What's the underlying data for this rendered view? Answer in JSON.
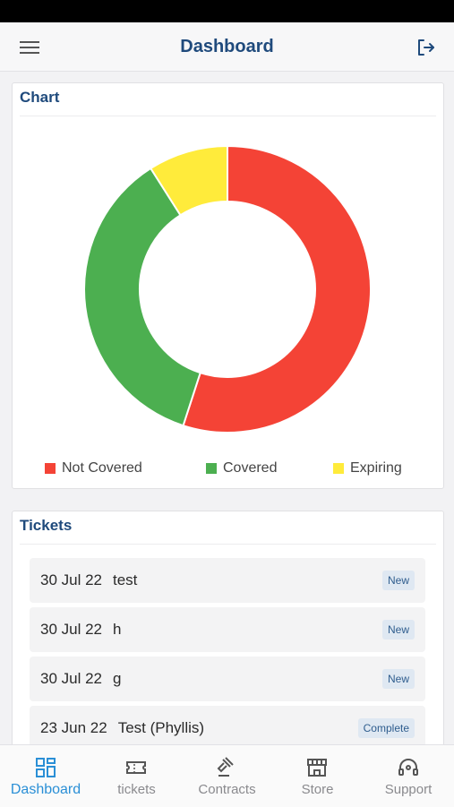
{
  "header": {
    "title": "Dashboard"
  },
  "chart_card": {
    "title": "Chart"
  },
  "chart_data": {
    "type": "pie",
    "donut": true,
    "categories": [
      "Not Covered",
      "Covered",
      "Expiring"
    ],
    "values": [
      55,
      36,
      9
    ],
    "colors": [
      "#f44336",
      "#4caf50",
      "#ffeb3b"
    ],
    "title": "Chart",
    "legend_position": "bottom"
  },
  "tickets_card": {
    "title": "Tickets"
  },
  "tickets": [
    {
      "date": "30 Jul 22",
      "subject": "test",
      "status": "New"
    },
    {
      "date": "30 Jul 22",
      "subject": "h",
      "status": "New"
    },
    {
      "date": "30 Jul 22",
      "subject": "g",
      "status": "New"
    },
    {
      "date": "23 Jun 22",
      "subject": "Test (Phyllis)",
      "status": "Complete"
    }
  ],
  "tabs": [
    {
      "label": "Dashboard",
      "icon": "dashboard-grid-icon",
      "active": true
    },
    {
      "label": "tickets",
      "icon": "ticket-icon",
      "active": false
    },
    {
      "label": "Contracts",
      "icon": "gavel-icon",
      "active": false
    },
    {
      "label": "Store",
      "icon": "store-icon",
      "active": false
    },
    {
      "label": "Support",
      "icon": "headset-icon",
      "active": false
    }
  ]
}
